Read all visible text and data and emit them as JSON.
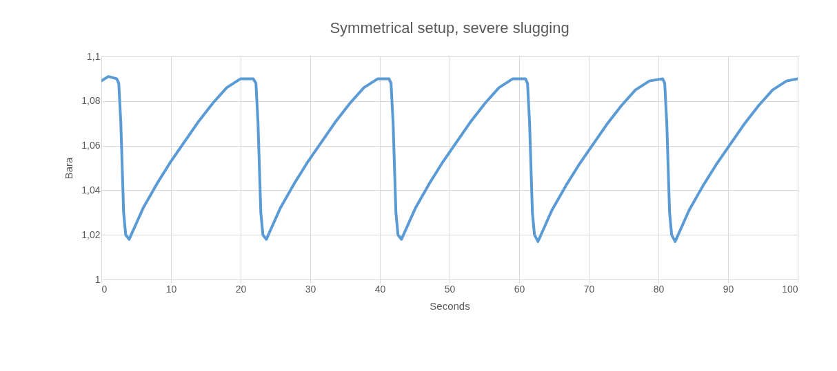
{
  "chart_data": {
    "type": "line",
    "title": "Symmetrical setup, severe slugging",
    "xlabel": "Seconds",
    "ylabel": "Bara",
    "series": [
      {
        "color": "#5b9bd5",
        "x": [
          0,
          1,
          2.2,
          2.5,
          2.8,
          3.0,
          3.2,
          3.5,
          4.0,
          5.0,
          6.0,
          8.0,
          10,
          12,
          14,
          16,
          18,
          20,
          21.8,
          22.2,
          22.5,
          22.7,
          22.9,
          23.2,
          23.7,
          24.7,
          25.7,
          27.7,
          29.7,
          31.7,
          33.7,
          35.7,
          37.7,
          39.7,
          41.3,
          41.6,
          41.9,
          42.1,
          42.3,
          42.6,
          43.1,
          44.1,
          45.1,
          47.1,
          49.1,
          51.1,
          53.1,
          55.1,
          57.1,
          59.1,
          60.9,
          61.2,
          61.5,
          61.7,
          61.9,
          62.2,
          62.7,
          63.7,
          64.7,
          66.7,
          68.7,
          70.7,
          72.7,
          74.7,
          76.7,
          78.7,
          80.6,
          80.9,
          81.2,
          81.4,
          81.6,
          81.9,
          82.4,
          83.4,
          84.4,
          86.4,
          88.4,
          90.4,
          92.4,
          94.4,
          96.4,
          98.4,
          100
        ],
        "values": [
          1.089,
          1.091,
          1.09,
          1.088,
          1.07,
          1.05,
          1.03,
          1.02,
          1.018,
          1.025,
          1.032,
          1.043,
          1.053,
          1.062,
          1.071,
          1.079,
          1.086,
          1.09,
          1.09,
          1.088,
          1.07,
          1.05,
          1.03,
          1.02,
          1.018,
          1.025,
          1.032,
          1.043,
          1.053,
          1.062,
          1.071,
          1.079,
          1.086,
          1.09,
          1.09,
          1.088,
          1.07,
          1.05,
          1.03,
          1.02,
          1.018,
          1.025,
          1.032,
          1.043,
          1.053,
          1.062,
          1.071,
          1.079,
          1.086,
          1.09,
          1.09,
          1.088,
          1.07,
          1.05,
          1.03,
          1.02,
          1.017,
          1.024,
          1.031,
          1.042,
          1.052,
          1.061,
          1.07,
          1.078,
          1.085,
          1.089,
          1.09,
          1.088,
          1.07,
          1.05,
          1.03,
          1.02,
          1.017,
          1.024,
          1.031,
          1.042,
          1.052,
          1.061,
          1.07,
          1.078,
          1.085,
          1.089,
          1.09
        ]
      }
    ],
    "xlim": [
      0,
      100
    ],
    "xticks": [
      0,
      10,
      20,
      30,
      40,
      50,
      60,
      70,
      80,
      90,
      100
    ],
    "ylim": [
      1,
      1.1
    ],
    "yticks": [
      1,
      {
        "value": 1.02,
        "label": "1,02"
      },
      {
        "value": 1.04,
        "label": "1,04"
      },
      {
        "value": 1.06,
        "label": "1,06"
      },
      {
        "value": 1.08,
        "label": "1,08"
      },
      {
        "value": 1.1,
        "label": "1,1"
      }
    ],
    "grid": true,
    "line_style": "solid"
  }
}
